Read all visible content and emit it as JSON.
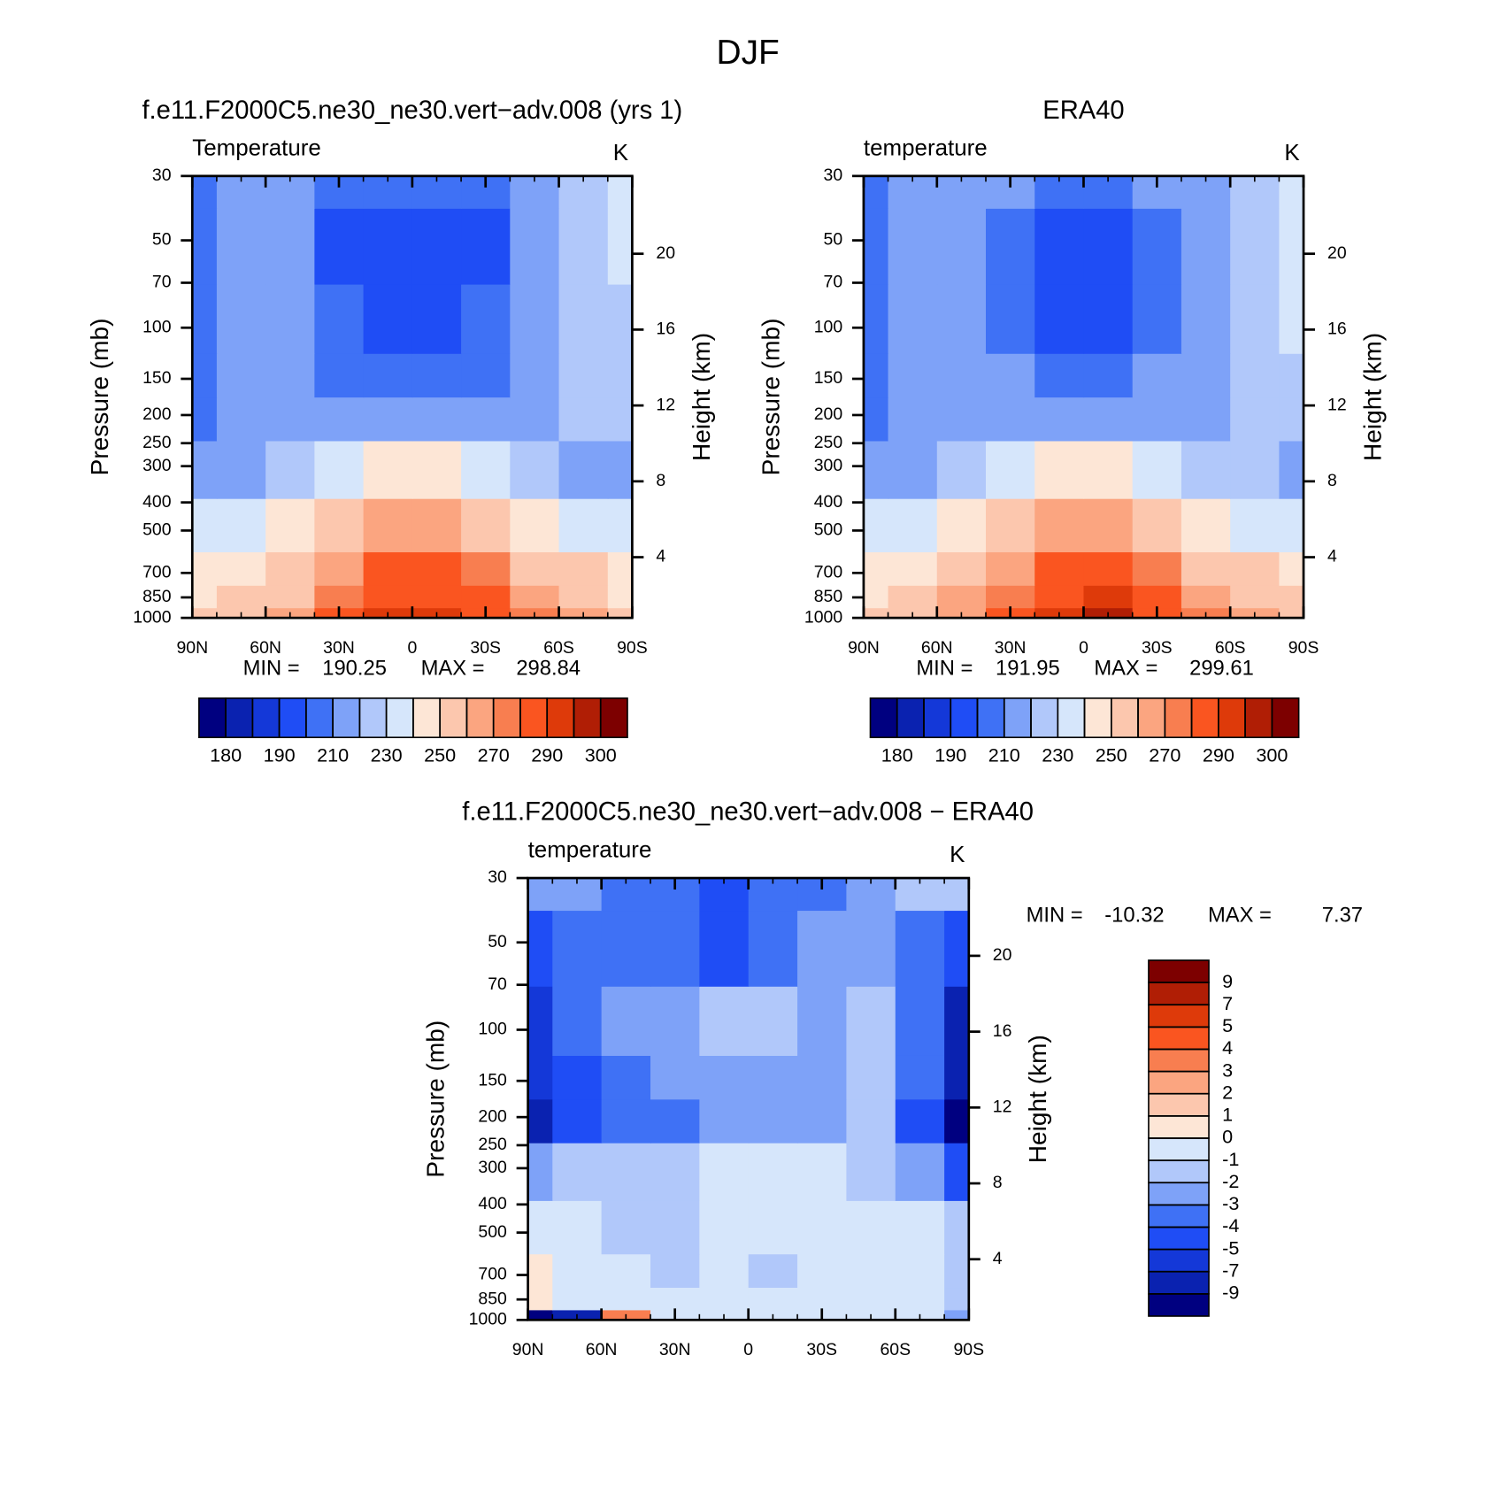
{
  "title": "DJF",
  "chart_data": [
    {
      "type": "contour",
      "title": "f.e11.F2000C5.ne30_ne30.vert−adv.008 (yrs 1)",
      "subtitle": "Temperature",
      "units": "K",
      "ylabel": "Pressure (mb)",
      "y2label": "Height (km)",
      "x": [
        90,
        70,
        50,
        30,
        10,
        -10,
        -30,
        -50,
        -70,
        -90
      ],
      "y": [
        1000,
        850,
        700,
        500,
        300,
        200,
        150,
        100,
        50,
        30
      ],
      "z": [
        [
          250,
          255,
          265,
          280,
          293,
          294,
          285,
          270,
          260,
          250
        ],
        [
          245,
          250,
          258,
          275,
          288,
          289,
          280,
          265,
          258,
          248
        ],
        [
          240,
          245,
          255,
          268,
          280,
          280,
          270,
          258,
          250,
          245
        ],
        [
          232,
          236,
          243,
          252,
          262,
          262,
          253,
          243,
          235,
          230
        ],
        [
          215,
          218,
          225,
          235,
          242,
          242,
          235,
          225,
          218,
          215
        ],
        [
          205,
          215,
          215,
          214,
          210,
          210,
          214,
          217,
          220,
          222
        ],
        [
          205,
          215,
          215,
          208,
          203,
          203,
          208,
          215,
          222,
          225
        ],
        [
          205,
          213,
          213,
          200,
          196,
          196,
          200,
          213,
          222,
          228
        ],
        [
          200,
          210,
          212,
          197,
          195,
          195,
          198,
          213,
          222,
          230
        ],
        [
          205,
          212,
          214,
          206,
          204,
          204,
          208,
          215,
          224,
          232
        ]
      ],
      "xlim": [
        90,
        -90
      ],
      "xticks": [
        {
          "value": 90,
          "label": "90N"
        },
        {
          "value": 60,
          "label": "60N"
        },
        {
          "value": 30,
          "label": "30N"
        },
        0,
        {
          "value": -30,
          "label": "30S"
        },
        {
          "value": -60,
          "label": "60S"
        },
        {
          "value": -90,
          "label": "90S"
        }
      ],
      "ylim": [
        1000,
        30
      ],
      "ylog": true,
      "yticks": [
        1000,
        850,
        700,
        500,
        400,
        300,
        250,
        200,
        150,
        100,
        70,
        50,
        30
      ],
      "y2lim": [
        0.8,
        24.1
      ],
      "y2ticks": [
        4,
        8,
        12,
        16,
        20
      ],
      "levels": [
        180,
        185,
        190,
        200,
        210,
        220,
        230,
        240,
        250,
        260,
        270,
        280,
        290,
        295,
        300
      ],
      "level_labels_every": 2,
      "colors": [
        "#000080",
        "#0a22b0",
        "#1438d8",
        "#1f4df5",
        "#3f71f5",
        "#7ea2f8",
        "#b1c8fa",
        "#d6e6fb",
        "#fde6d6",
        "#fcc7ae",
        "#fba580",
        "#f87e50",
        "#fa5520",
        "#de3a0a",
        "#b01e05",
        "#7d0000"
      ],
      "min_text": "MIN =",
      "min": 190.25,
      "max_text": "MAX =",
      "max": 298.84
    },
    {
      "type": "contour",
      "title": "ERA40",
      "subtitle": "temperature",
      "units": "K",
      "ylabel": "Pressure (mb)",
      "y2label": "Height (km)",
      "x": [
        90,
        70,
        50,
        30,
        10,
        -10,
        -30,
        -50,
        -70,
        -90
      ],
      "y": [
        1000,
        850,
        700,
        500,
        300,
        200,
        150,
        100,
        50,
        30
      ],
      "z": [
        [
          252,
          257,
          267,
          282,
          294,
          295,
          286,
          271,
          262,
          252
        ],
        [
          247,
          252,
          260,
          276,
          289,
          290,
          281,
          266,
          259,
          250
        ],
        [
          242,
          247,
          256,
          269,
          281,
          281,
          271,
          259,
          251,
          246
        ],
        [
          233,
          237,
          244,
          253,
          263,
          263,
          254,
          244,
          236,
          232
        ],
        [
          216,
          219,
          226,
          236,
          243,
          243,
          236,
          226,
          220,
          217
        ],
        [
          209,
          215,
          216,
          216,
          213,
          213,
          216,
          218,
          222,
          225
        ],
        [
          208,
          215,
          215,
          210,
          205,
          205,
          210,
          216,
          224,
          228
        ],
        [
          208,
          214,
          214,
          202,
          197,
          197,
          202,
          215,
          224,
          232
        ],
        [
          206,
          212,
          212,
          202,
          197,
          197,
          202,
          215,
          225,
          233
        ],
        [
          207,
          213,
          215,
          210,
          208,
          208,
          212,
          218,
          227,
          235
        ]
      ],
      "xlim": [
        90,
        -90
      ],
      "xticks": [
        {
          "value": 90,
          "label": "90N"
        },
        {
          "value": 60,
          "label": "60N"
        },
        {
          "value": 30,
          "label": "30N"
        },
        0,
        {
          "value": -30,
          "label": "30S"
        },
        {
          "value": -60,
          "label": "60S"
        },
        {
          "value": -90,
          "label": "90S"
        }
      ],
      "ylim": [
        1000,
        30
      ],
      "ylog": true,
      "yticks": [
        1000,
        850,
        700,
        500,
        400,
        300,
        250,
        200,
        150,
        100,
        70,
        50,
        30
      ],
      "y2lim": [
        0.8,
        24.1
      ],
      "y2ticks": [
        4,
        8,
        12,
        16,
        20
      ],
      "levels": [
        180,
        185,
        190,
        200,
        210,
        220,
        230,
        240,
        250,
        260,
        270,
        280,
        290,
        295,
        300
      ],
      "level_labels_every": 2,
      "colors": [
        "#000080",
        "#0a22b0",
        "#1438d8",
        "#1f4df5",
        "#3f71f5",
        "#7ea2f8",
        "#b1c8fa",
        "#d6e6fb",
        "#fde6d6",
        "#fcc7ae",
        "#fba580",
        "#f87e50",
        "#fa5520",
        "#de3a0a",
        "#b01e05",
        "#7d0000"
      ],
      "min_text": "MIN =",
      "min": 191.95,
      "max_text": "MAX =",
      "max": 299.61
    },
    {
      "type": "contour",
      "title": "f.e11.F2000C5.ne30_ne30.vert−adv.008 − ERA40",
      "subtitle": "temperature",
      "units": "K",
      "ylabel": "Pressure (mb)",
      "y2label": "Height (km)",
      "x": [
        90,
        70,
        50,
        30,
        10,
        -10,
        -30,
        -50,
        -70,
        -90
      ],
      "y": [
        1000,
        850,
        700,
        500,
        300,
        200,
        150,
        100,
        50,
        30
      ],
      "z": [
        [
          -9.5,
          -8,
          3,
          -0.5,
          -0.5,
          -0.5,
          -0.5,
          -0.5,
          -0.5,
          -2.5
        ],
        [
          0.5,
          -0.5,
          -0.5,
          -0.5,
          -0.5,
          -0.5,
          -0.5,
          -0.5,
          -0.5,
          -1.5
        ],
        [
          0.5,
          -0.5,
          -0.5,
          -1.5,
          -0.5,
          -1.5,
          -0.5,
          -0.5,
          -0.5,
          -1.5
        ],
        [
          -0.5,
          -0.5,
          -1.5,
          -1.5,
          -0.5,
          -0.5,
          -0.5,
          -0.5,
          -0.5,
          -1.5
        ],
        [
          -2.5,
          -1.5,
          -1.5,
          -1.5,
          -0.5,
          -0.5,
          -0.5,
          -1.5,
          -2.5,
          -4.5
        ],
        [
          -7.5,
          -4.5,
          -3.5,
          -3.5,
          -2.5,
          -2.5,
          -2.5,
          -1.5,
          -4.5,
          -9.5
        ],
        [
          -6,
          -4.5,
          -3.5,
          -2.5,
          -2.5,
          -2.5,
          -2.5,
          -1.5,
          -3.5,
          -7.5
        ],
        [
          -6,
          -3.5,
          -2.5,
          -2.5,
          -1.5,
          -1.5,
          -2.5,
          -1.5,
          -3.5,
          -7.5
        ],
        [
          -4.5,
          -3.5,
          -3.5,
          -3.5,
          -4.5,
          -3.5,
          -2.5,
          -2.5,
          -3.5,
          -4.5
        ],
        [
          -2.5,
          -2.5,
          -3.5,
          -3.5,
          -4.5,
          -3.5,
          -3.5,
          -2.5,
          -1.5,
          -1.5
        ]
      ],
      "xlim": [
        90,
        -90
      ],
      "xticks": [
        {
          "value": 90,
          "label": "90N"
        },
        {
          "value": 60,
          "label": "60N"
        },
        {
          "value": 30,
          "label": "30N"
        },
        0,
        {
          "value": -30,
          "label": "30S"
        },
        {
          "value": -60,
          "label": "60S"
        },
        {
          "value": -90,
          "label": "90S"
        }
      ],
      "ylim": [
        1000,
        30
      ],
      "ylog": true,
      "yticks": [
        1000,
        850,
        700,
        500,
        400,
        300,
        250,
        200,
        150,
        100,
        70,
        50,
        30
      ],
      "y2lim": [
        0.8,
        24.1
      ],
      "y2ticks": [
        4,
        8,
        12,
        16,
        20
      ],
      "levels": [
        -9,
        -7,
        -5,
        -4,
        -3,
        -2,
        -1,
        0,
        1,
        2,
        3,
        4,
        5,
        7,
        9
      ],
      "level_labels_every": 1,
      "colors": [
        "#000080",
        "#0a22b0",
        "#1438d8",
        "#1f4df5",
        "#3f71f5",
        "#7ea2f8",
        "#b1c8fa",
        "#d6e6fb",
        "#fde6d6",
        "#fcc7ae",
        "#fba580",
        "#f87e50",
        "#fa5520",
        "#de3a0a",
        "#b01e05",
        "#7d0000"
      ],
      "min_text": "MIN =",
      "min": -10.32,
      "max_text": "MAX =",
      "max": 7.37
    }
  ]
}
